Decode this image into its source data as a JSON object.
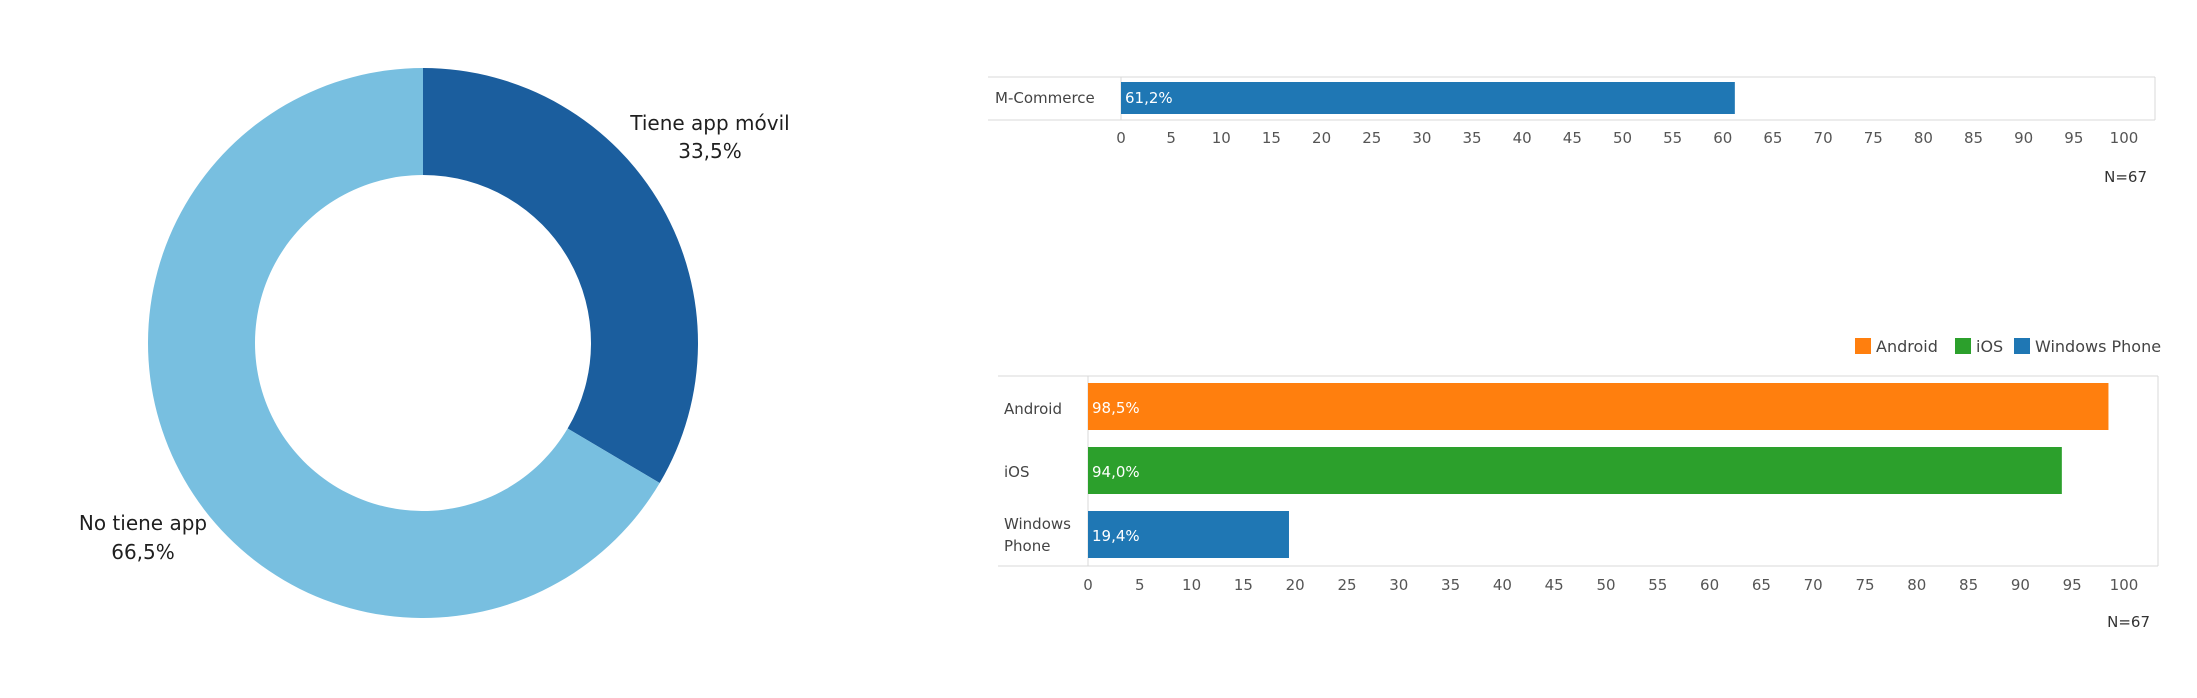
{
  "chart_data": [
    {
      "type": "pie",
      "variant": "donut",
      "slices": [
        {
          "label": "Tiene app móvil",
          "value_label": "33,5%",
          "value": 33.5,
          "color": "#1b5e9e"
        },
        {
          "label": "No tiene app",
          "value_label": "66,5%",
          "value": 66.5,
          "color": "#78bfe0"
        }
      ]
    },
    {
      "type": "bar",
      "orientation": "horizontal",
      "categories": [
        "M-Commerce"
      ],
      "values": [
        61.2
      ],
      "data_labels": [
        "61,2%"
      ],
      "colors": [
        "#1f77b4"
      ],
      "xlim": [
        0,
        100
      ],
      "ticks": [
        "0",
        "5",
        "10",
        "15",
        "20",
        "25",
        "30",
        "35",
        "40",
        "45",
        "50",
        "55",
        "60",
        "65",
        "70",
        "75",
        "80",
        "85",
        "90",
        "95",
        "100"
      ],
      "note": "N=67"
    },
    {
      "type": "bar",
      "orientation": "horizontal",
      "categories": [
        "Android",
        "iOS",
        "Windows Phone"
      ],
      "category_lines": [
        [
          "Android"
        ],
        [
          "iOS"
        ],
        [
          "Windows",
          "Phone"
        ]
      ],
      "values": [
        98.5,
        94.0,
        19.4
      ],
      "data_labels": [
        "98,5%",
        "94,0%",
        "19,4%"
      ],
      "colors": [
        "#ff7f0e",
        "#2ca02c",
        "#1f77b4"
      ],
      "legend": [
        {
          "name": "Android",
          "color": "#ff7f0e"
        },
        {
          "name": "iOS",
          "color": "#2ca02c"
        },
        {
          "name": "Windows Phone",
          "color": "#1f77b4"
        }
      ],
      "legend_position": "top-right",
      "xlim": [
        0,
        100
      ],
      "ticks": [
        "0",
        "5",
        "10",
        "15",
        "20",
        "25",
        "30",
        "35",
        "40",
        "45",
        "50",
        "55",
        "60",
        "65",
        "70",
        "75",
        "80",
        "85",
        "90",
        "95",
        "100"
      ],
      "note": "N=67"
    }
  ]
}
